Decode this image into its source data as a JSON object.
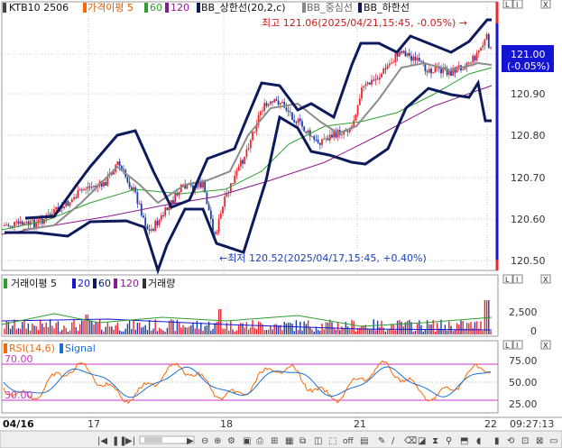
{
  "main_legend": {
    "symbol": "KTB10  2506",
    "ma": "가격이평 5",
    "p60": "60",
    "p120": "120",
    "bb_upper": "BB_상한선(20,2,c)",
    "bb_mid": "BB_중심선",
    "bb_lower": "BB_하한선"
  },
  "high_annotation": "최고 121.06(2025/04/21,15:45, -0.05%) →",
  "low_annotation": "←최저 120.52(2025/04/17,15:45, +0.40%)",
  "current_price": {
    "value": "121.00",
    "change": "(-0.05%)"
  },
  "price_axis": [
    "120.90",
    "120.80",
    "120.70",
    "120.60",
    "120.50"
  ],
  "volume_legend": {
    "title": "거래이평 5",
    "p20": "20",
    "p60": "60",
    "p120": "120",
    "vol": "거래량"
  },
  "volume_axis": [
    "2,500",
    "0"
  ],
  "rsi_legend": {
    "title": "RSI(14,6)",
    "signal": "Signal"
  },
  "rsi_levels": {
    "upper": "70.00",
    "lower": "30.00"
  },
  "rsi_axis": [
    "75.00",
    "50.00",
    "25.00"
  ],
  "x_axis": {
    "start": "04/16",
    "labels": [
      "17",
      "18",
      "21",
      "22"
    ],
    "time": "09:27:13"
  },
  "panel_buttons": [
    "L",
    "I",
    "X"
  ],
  "colors": {
    "up": "#e8262b",
    "down": "#1b3fa6",
    "bb": "#0d1a5c",
    "ma5": "#ff6600",
    "ma60": "#2e9e2e",
    "ma120": "#8a1b8a",
    "current": "#1414d2"
  },
  "chart_data": {
    "type": "candlestick",
    "price_range": [
      120.47,
      121.08
    ],
    "high": 121.06,
    "low": 120.52,
    "last": 121.0,
    "rsi_range": [
      10,
      90
    ],
    "volume_max": 3000
  }
}
